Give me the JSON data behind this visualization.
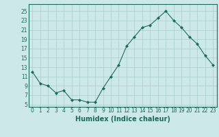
{
  "x": [
    0,
    1,
    2,
    3,
    4,
    5,
    6,
    7,
    8,
    9,
    10,
    11,
    12,
    13,
    14,
    15,
    16,
    17,
    18,
    19,
    20,
    21,
    22,
    23
  ],
  "y": [
    12,
    9.5,
    9,
    7.5,
    8,
    6,
    6,
    5.5,
    5.5,
    8.5,
    11,
    13.5,
    17.5,
    19.5,
    21.5,
    22,
    23.5,
    25,
    23,
    21.5,
    19.5,
    18,
    15.5,
    13.5
  ],
  "line_color": "#1a6b5a",
  "marker": "D",
  "marker_size": 2,
  "bg_color": "#cce8e8",
  "grid_color": "#aacccc",
  "xlabel": "Humidex (Indice chaleur)",
  "yticks": [
    5,
    7,
    9,
    11,
    13,
    15,
    17,
    19,
    21,
    23,
    25
  ],
  "xticks": [
    0,
    1,
    2,
    3,
    4,
    5,
    6,
    7,
    8,
    9,
    10,
    11,
    12,
    13,
    14,
    15,
    16,
    17,
    18,
    19,
    20,
    21,
    22,
    23
  ],
  "ylim": [
    4.5,
    26.5
  ],
  "xlim": [
    -0.5,
    23.5
  ],
  "tick_color": "#1a6b5a",
  "tick_fontsize": 5.5,
  "xlabel_fontsize": 7,
  "xlabel_fontweight": "bold"
}
